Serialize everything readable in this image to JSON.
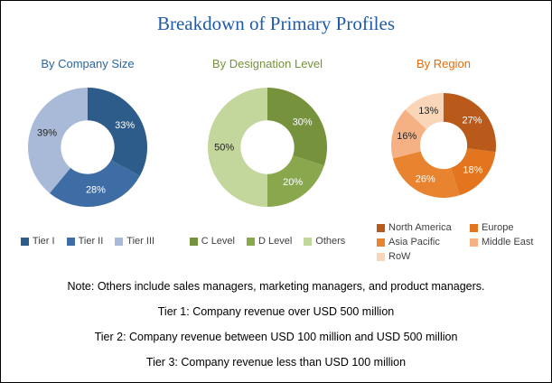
{
  "title": "Breakdown of Primary Profiles",
  "chart_data": [
    {
      "type": "pie",
      "title": "By Company Size",
      "title_color": "#2A66A5",
      "labels": [
        "Tier I",
        "Tier II",
        "Tier III"
      ],
      "values": [
        33,
        28,
        39
      ],
      "value_labels": [
        "33%",
        "28%",
        "39%"
      ],
      "colors": [
        "#2E5C8A",
        "#3E6DA5",
        "#A9BAD9"
      ],
      "hole": 0.45,
      "start_angle": "top",
      "direction": "clockwise",
      "legend_position": "bottom",
      "legend_cols": 3
    },
    {
      "type": "pie",
      "title": "By Designation Level",
      "title_color": "#76923C",
      "labels": [
        "C Level",
        "D Level",
        "Others"
      ],
      "values": [
        30,
        20,
        50
      ],
      "value_labels": [
        "30%",
        "20%",
        "50%"
      ],
      "colors": [
        "#76923C",
        "#89A84D",
        "#C3D69B"
      ],
      "hole": 0.45,
      "start_angle": "top",
      "direction": "clockwise",
      "legend_position": "bottom",
      "legend_cols": 3
    },
    {
      "type": "pie",
      "title": "By Region",
      "title_color": "#E36C0A",
      "labels": [
        "North America",
        "Europe",
        "Asia Pacific",
        "Middle East",
        "RoW"
      ],
      "values": [
        27,
        18,
        26,
        16,
        13
      ],
      "value_labels": [
        "27%",
        "18%",
        "26%",
        "16%",
        "13%"
      ],
      "colors": [
        "#B95A1B",
        "#E2751D",
        "#E8832F",
        "#F5B183",
        "#FAD6B8"
      ],
      "hole": 0.45,
      "start_angle": "top",
      "direction": "clockwise",
      "legend_position": "bottom",
      "legend_cols": 2
    }
  ],
  "notes": [
    "Note: Others include sales managers, marketing managers, and product managers.",
    "Tier 1: Company revenue over USD 500 million",
    "Tier 2: Company revenue between USD 100 million and USD 500 million",
    "Tier 3: Company revenue less than USD 100 million"
  ]
}
